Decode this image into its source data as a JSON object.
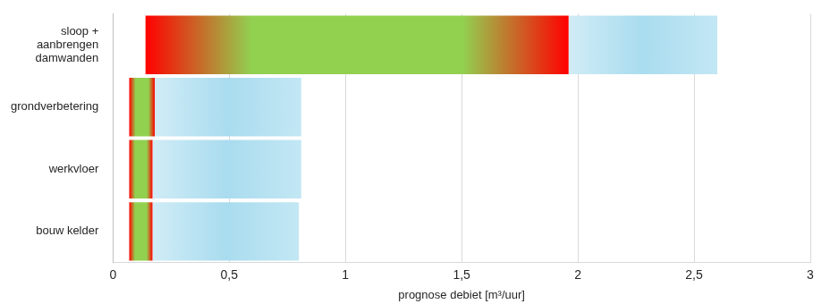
{
  "chart_data": {
    "type": "bar",
    "orientation": "horizontal",
    "categories": [
      [
        "sloop +",
        "aanbrengen",
        "damwanden"
      ],
      "grondverbetering",
      "werkvloer",
      "bouw kelder"
    ],
    "series": [
      {
        "color": "#92d050",
        "values": [
          [
            0.14,
            1.96
          ],
          [
            0.07,
            0.18
          ],
          [
            0.07,
            0.17
          ],
          [
            0.07,
            0.17
          ]
        ]
      },
      {
        "color": "#a9dcef",
        "values": [
          [
            1.96,
            2.6
          ],
          [
            0.18,
            0.81
          ],
          [
            0.17,
            0.81
          ],
          [
            0.17,
            0.8
          ]
        ]
      }
    ],
    "x_label": "prognose debiet [m³/uur]",
    "xlim": [
      0,
      3
    ],
    "xticks": [
      0,
      {
        "value": 0.5,
        "label": "0,5"
      },
      1,
      {
        "value": 1.5,
        "label": "1,5"
      },
      2,
      {
        "value": 2.5,
        "label": "2,5"
      },
      3
    ],
    "grid": true
  }
}
